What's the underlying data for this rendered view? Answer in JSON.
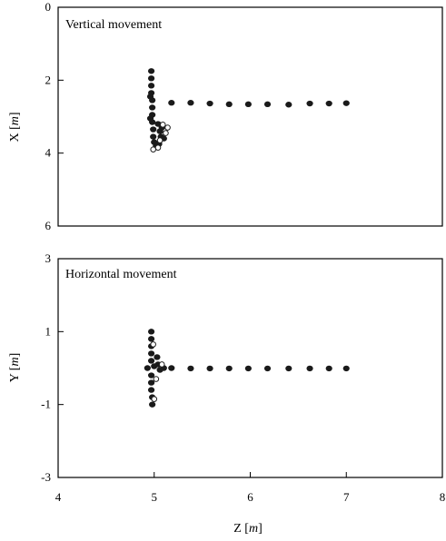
{
  "chart_data": [
    {
      "type": "scatter",
      "title": "Vertical movement",
      "ylabel": "X [m]",
      "ylabel_parts": [
        "X [",
        "m",
        "]"
      ],
      "xlim": [
        4,
        8
      ],
      "ylim": [
        0,
        6
      ],
      "y_inverted": true,
      "yticks": [
        0,
        2,
        4,
        6
      ],
      "show_xticklabels": false,
      "grid": false,
      "series": [
        {
          "style": "dark",
          "points": [
            [
              5.18,
              2.62
            ],
            [
              5.38,
              2.62
            ],
            [
              5.58,
              2.64
            ],
            [
              5.78,
              2.66
            ],
            [
              5.98,
              2.66
            ],
            [
              6.18,
              2.66
            ],
            [
              6.4,
              2.67
            ],
            [
              6.62,
              2.64
            ],
            [
              6.82,
              2.64
            ],
            [
              7.0,
              2.63
            ],
            [
              4.97,
              1.75
            ],
            [
              4.97,
              1.95
            ],
            [
              4.97,
              2.15
            ],
            [
              4.97,
              2.35
            ],
            [
              4.98,
              2.55
            ],
            [
              4.98,
              2.75
            ],
            [
              4.98,
              2.95
            ],
            [
              4.98,
              3.15
            ],
            [
              4.99,
              3.35
            ],
            [
              4.99,
              3.55
            ],
            [
              5.0,
              3.7
            ],
            [
              5.02,
              3.8
            ],
            [
              5.05,
              3.75
            ],
            [
              5.07,
              3.55
            ],
            [
              5.06,
              3.4
            ],
            [
              5.04,
              3.2
            ],
            [
              5.1,
              3.6
            ],
            [
              4.96,
              2.45
            ],
            [
              4.96,
              3.05
            ],
            [
              5.08,
              3.3
            ]
          ]
        },
        {
          "style": "open",
          "points": [
            [
              5.09,
              3.22
            ],
            [
              5.12,
              3.45
            ],
            [
              5.04,
              3.85
            ],
            [
              4.99,
              3.9
            ],
            [
              5.14,
              3.3
            ],
            [
              5.06,
              3.65
            ]
          ]
        }
      ]
    },
    {
      "type": "scatter",
      "title": "Horizontal movement",
      "ylabel": "Y [m]",
      "ylabel_parts": [
        "Y [",
        "m",
        "]"
      ],
      "xlabel": "Z [m]",
      "xlabel_parts": [
        "Z [",
        "m",
        "]"
      ],
      "xlim": [
        4,
        8
      ],
      "ylim": [
        -3,
        3
      ],
      "xticks": [
        4,
        5,
        6,
        7,
        8
      ],
      "yticks": [
        3,
        1,
        -1,
        -3
      ],
      "grid": false,
      "series": [
        {
          "style": "dark",
          "points": [
            [
              4.93,
              0.0
            ],
            [
              5.1,
              0.0
            ],
            [
              5.18,
              0.0
            ],
            [
              5.38,
              -0.01
            ],
            [
              5.58,
              -0.01
            ],
            [
              5.78,
              -0.01
            ],
            [
              5.98,
              -0.01
            ],
            [
              6.18,
              -0.01
            ],
            [
              6.4,
              -0.01
            ],
            [
              6.62,
              -0.01
            ],
            [
              6.82,
              -0.01
            ],
            [
              7.0,
              -0.01
            ],
            [
              4.97,
              1.0
            ],
            [
              4.97,
              0.8
            ],
            [
              4.97,
              0.6
            ],
            [
              4.97,
              0.4
            ],
            [
              4.97,
              0.2
            ],
            [
              4.97,
              -0.2
            ],
            [
              4.97,
              -0.4
            ],
            [
              4.97,
              -0.6
            ],
            [
              4.98,
              -0.8
            ],
            [
              4.98,
              -1.0
            ],
            [
              5.0,
              0.05
            ],
            [
              5.04,
              0.1
            ],
            [
              5.06,
              -0.05
            ],
            [
              5.03,
              0.3
            ]
          ]
        },
        {
          "style": "open",
          "points": [
            [
              5.0,
              -0.85
            ],
            [
              5.08,
              0.1
            ],
            [
              5.02,
              -0.3
            ],
            [
              4.99,
              0.65
            ]
          ]
        }
      ]
    }
  ]
}
